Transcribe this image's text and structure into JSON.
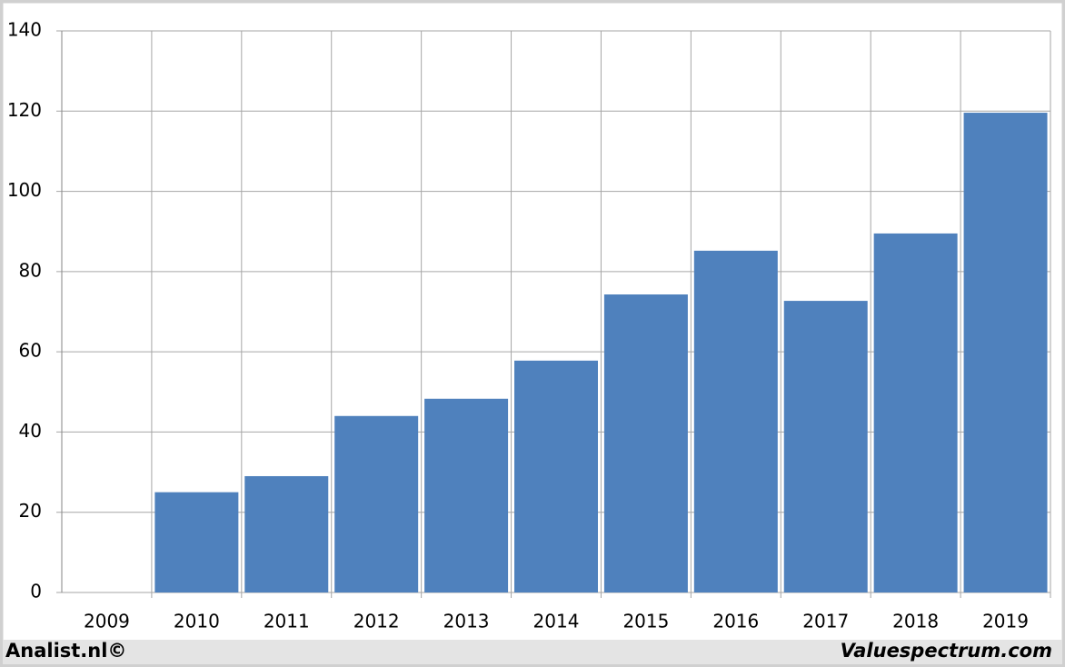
{
  "chart_data": {
    "type": "bar",
    "categories": [
      "2009",
      "2010",
      "2011",
      "2012",
      "2013",
      "2014",
      "2015",
      "2016",
      "2017",
      "2018",
      "2019"
    ],
    "values": [
      null,
      25,
      29,
      44,
      48.3,
      57.8,
      74.3,
      85.2,
      72.7,
      89.5,
      119.6
    ],
    "color": "#4f81bd",
    "ylim": [
      0,
      140
    ],
    "yticks": [
      0,
      20,
      40,
      60,
      80,
      100,
      120,
      140
    ],
    "grid": true,
    "footer_left": "Analist.nl©",
    "footer_right": "Valuespectrum.com"
  }
}
